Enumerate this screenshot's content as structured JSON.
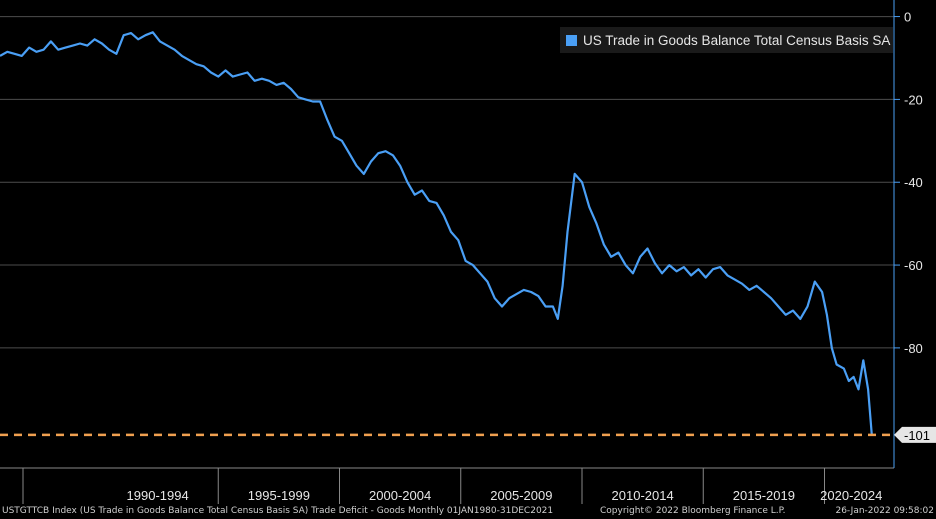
{
  "chart_data": {
    "type": "line",
    "title": "",
    "xlabel": "",
    "ylabel": "",
    "ylim": [
      -109,
      4
    ],
    "y_axis_side": "right",
    "y_ticks": [
      0,
      -20,
      -40,
      -60,
      -80
    ],
    "x_range": [
      1980.0,
      2022.0
    ],
    "x_categories": [
      {
        "label": "1990-1994",
        "start": 1990,
        "end": 1995
      },
      {
        "label": "1995-1999",
        "start": 1995,
        "end": 2000
      },
      {
        "label": "2000-2004",
        "start": 2000,
        "end": 2005
      },
      {
        "label": "2005-2009",
        "start": 2005,
        "end": 2010
      },
      {
        "label": "2010-2014",
        "start": 2010,
        "end": 2015
      },
      {
        "label": "2015-2019",
        "start": 2015,
        "end": 2020
      },
      {
        "label": "2020-2024",
        "start": 2020,
        "end": 2025
      }
    ],
    "grid": true,
    "legend_position": "top-right",
    "series": [
      {
        "name": "US Trade in Goods Balance Total Census Basis SA",
        "color": "#4a9ff5",
        "x": [
          1986.0,
          1986.3,
          1986.6,
          1986.9,
          1987.2,
          1987.5,
          1987.8,
          1988.1,
          1988.4,
          1988.7,
          1989.0,
          1989.3,
          1989.6,
          1989.9,
          1990.2,
          1990.5,
          1990.8,
          1991.1,
          1991.4,
          1991.7,
          1992.0,
          1992.3,
          1992.6,
          1992.9,
          1993.2,
          1993.5,
          1993.8,
          1994.1,
          1994.4,
          1994.7,
          1995.0,
          1995.3,
          1995.6,
          1995.9,
          1996.2,
          1996.5,
          1996.8,
          1997.1,
          1997.4,
          1997.7,
          1998.0,
          1998.3,
          1998.6,
          1998.9,
          1999.2,
          1999.5,
          1999.8,
          2000.1,
          2000.4,
          2000.7,
          2001.0,
          2001.3,
          2001.6,
          2001.9,
          2002.2,
          2002.5,
          2002.8,
          2003.1,
          2003.4,
          2003.7,
          2004.0,
          2004.3,
          2004.6,
          2004.9,
          2005.2,
          2005.5,
          2005.8,
          2006.1,
          2006.4,
          2006.7,
          2007.0,
          2007.3,
          2007.6,
          2007.9,
          2008.2,
          2008.5,
          2008.8,
          2009.0,
          2009.2,
          2009.4,
          2009.7,
          2010.0,
          2010.3,
          2010.6,
          2010.9,
          2011.2,
          2011.5,
          2011.8,
          2012.1,
          2012.4,
          2012.7,
          2013.0,
          2013.3,
          2013.6,
          2013.9,
          2014.2,
          2014.5,
          2014.8,
          2015.1,
          2015.4,
          2015.7,
          2016.0,
          2016.3,
          2016.6,
          2016.9,
          2017.2,
          2017.5,
          2017.8,
          2018.1,
          2018.4,
          2018.7,
          2019.0,
          2019.3,
          2019.6,
          2019.9,
          2020.1,
          2020.3,
          2020.5,
          2020.8,
          2021.0,
          2021.2,
          2021.4,
          2021.6,
          2021.8,
          2021.95
        ],
        "values": [
          -9.5,
          -8.5,
          -9.0,
          -9.5,
          -7.5,
          -8.5,
          -8.0,
          -6.0,
          -8.0,
          -7.5,
          -7.0,
          -6.5,
          -7.0,
          -5.5,
          -6.5,
          -8.0,
          -9.0,
          -4.5,
          -4.0,
          -5.5,
          -4.5,
          -3.8,
          -6.0,
          -7.0,
          -8.0,
          -9.5,
          -10.5,
          -11.5,
          -12.0,
          -13.5,
          -14.5,
          -13.0,
          -14.5,
          -14.0,
          -13.5,
          -15.5,
          -15.0,
          -15.5,
          -16.5,
          -16.0,
          -17.5,
          -19.5,
          -20.0,
          -20.5,
          -20.5,
          -25.0,
          -29.0,
          -30.0,
          -33.0,
          -36.0,
          -38.0,
          -35.0,
          -33.0,
          -32.5,
          -33.5,
          -36.0,
          -40.0,
          -43.0,
          -42.0,
          -44.5,
          -45.0,
          -48.0,
          -52.0,
          -54.0,
          -59.0,
          -60.0,
          -62.0,
          -64.0,
          -68.0,
          -70.0,
          -68.0,
          -67.0,
          -66.0,
          -66.5,
          -67.5,
          -70.0,
          -70.0,
          -73.0,
          -65.0,
          -52.0,
          -38.0,
          -40.0,
          -46.0,
          -50.0,
          -55.0,
          -58.0,
          -57.0,
          -60.0,
          -62.0,
          -58.0,
          -56.0,
          -59.5,
          -62.0,
          -60.0,
          -61.5,
          -60.5,
          -62.5,
          -61.0,
          -63.0,
          -61.0,
          -60.5,
          -62.5,
          -63.5,
          -64.5,
          -66.0,
          -65.0,
          -66.5,
          -68.0,
          -70.0,
          -72.0,
          -71.0,
          -73.0,
          -70.0,
          -64.0,
          -66.5,
          -72.0,
          -80.0,
          -84.0,
          -85.0,
          -88.0,
          -87.0,
          -90.0,
          -83.0,
          -90.0,
          -101.0
        ]
      }
    ],
    "reference_line": {
      "value": -101,
      "label": "-101",
      "color": "#f0a050",
      "style": "dashed"
    }
  },
  "footer": {
    "left": "USTGTTCB Index (US Trade in Goods Balance Total Census Basis SA) Trade Deficit - Goods  Monthly 01JAN1980-31DEC2021",
    "center": "Copyright© 2022 Bloomberg Finance L.P.",
    "right": "26-Jan-2022 09:58:02"
  },
  "colors": {
    "background": "#000000",
    "grid": "#4d4d4d",
    "axis": "#4a9ff5",
    "text": "#e6e6e6"
  }
}
